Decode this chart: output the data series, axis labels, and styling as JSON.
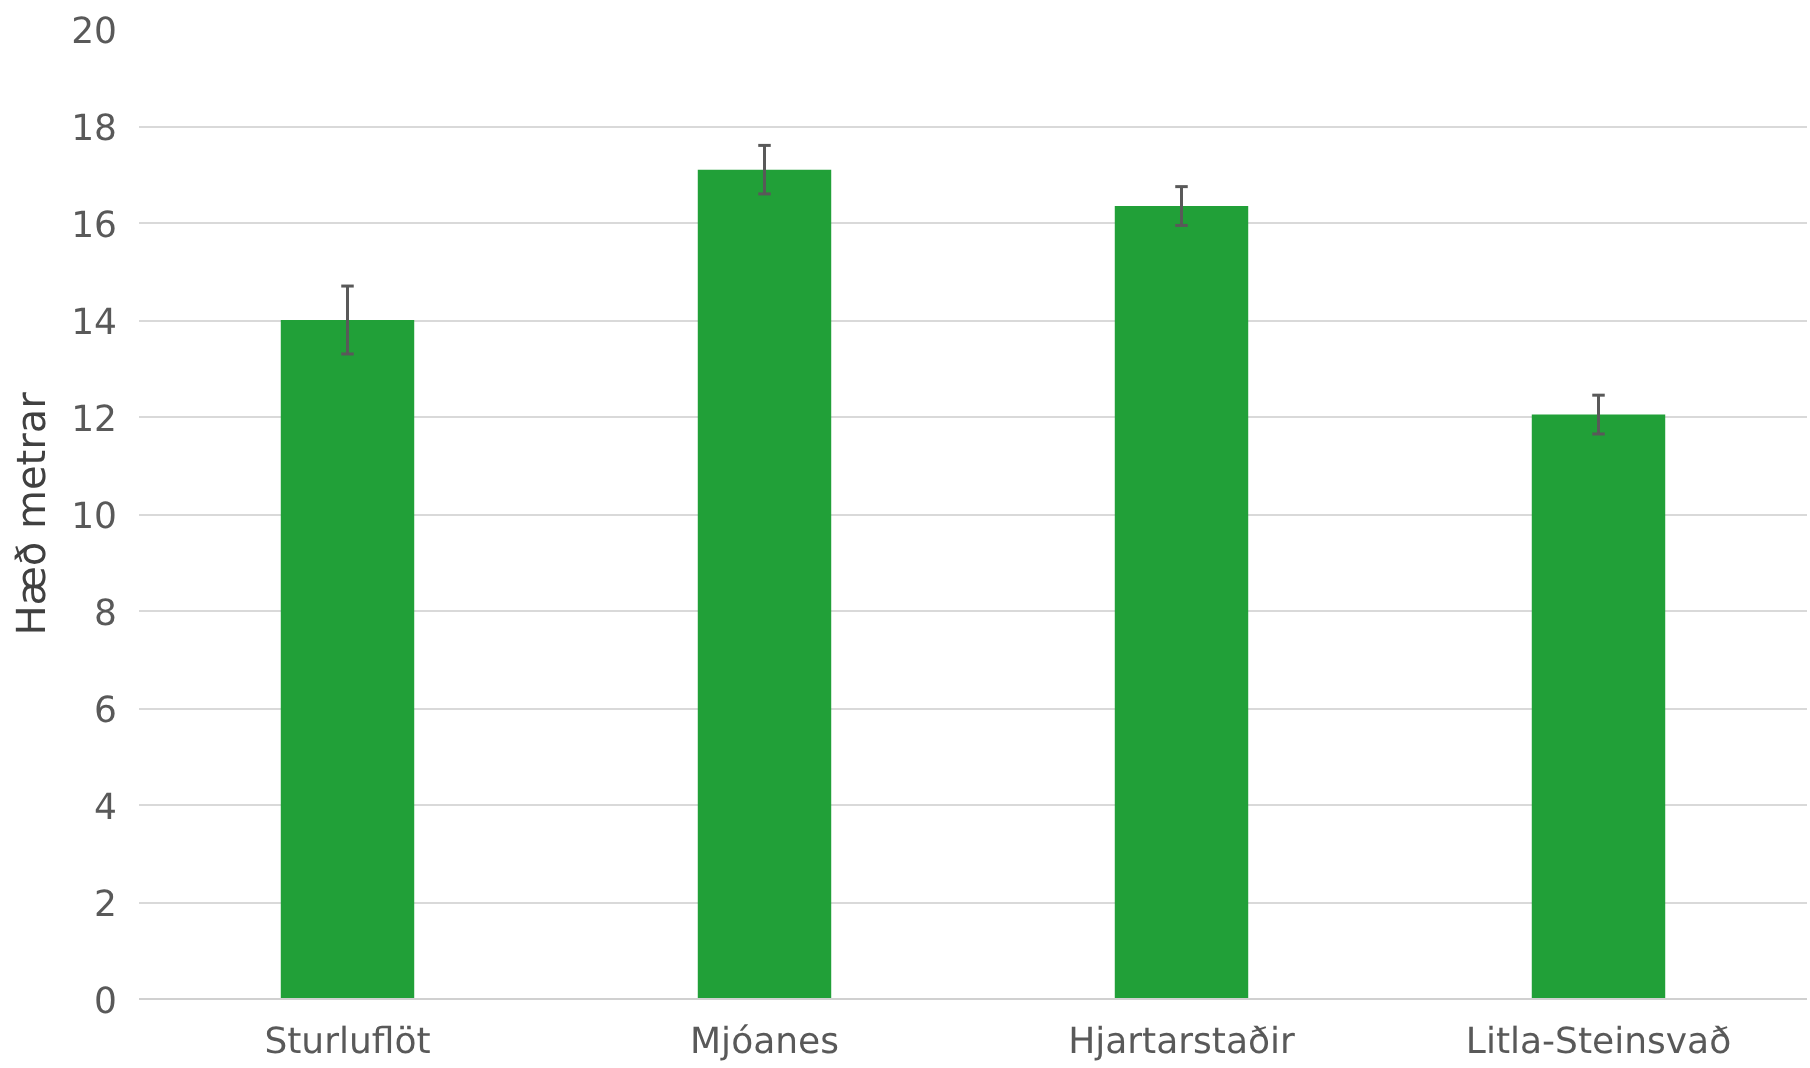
{
  "chart_data": {
    "type": "bar",
    "ylabel": "Hæð metrar",
    "categories": [
      "Sturluflöt",
      "Mjóanes",
      "Hjartarstaðir",
      "Litla-Steinsvað"
    ],
    "series": [
      {
        "color": "#21a038",
        "values": [
          14.0,
          17.1,
          16.35,
          12.05
        ],
        "errors": [
          0.7,
          0.5,
          0.4,
          0.4
        ]
      }
    ],
    "ylim": [
      0,
      20
    ],
    "yticks": [
      0,
      2,
      4,
      6,
      8,
      10,
      12,
      14,
      16,
      18,
      20
    ],
    "grid": "y"
  }
}
